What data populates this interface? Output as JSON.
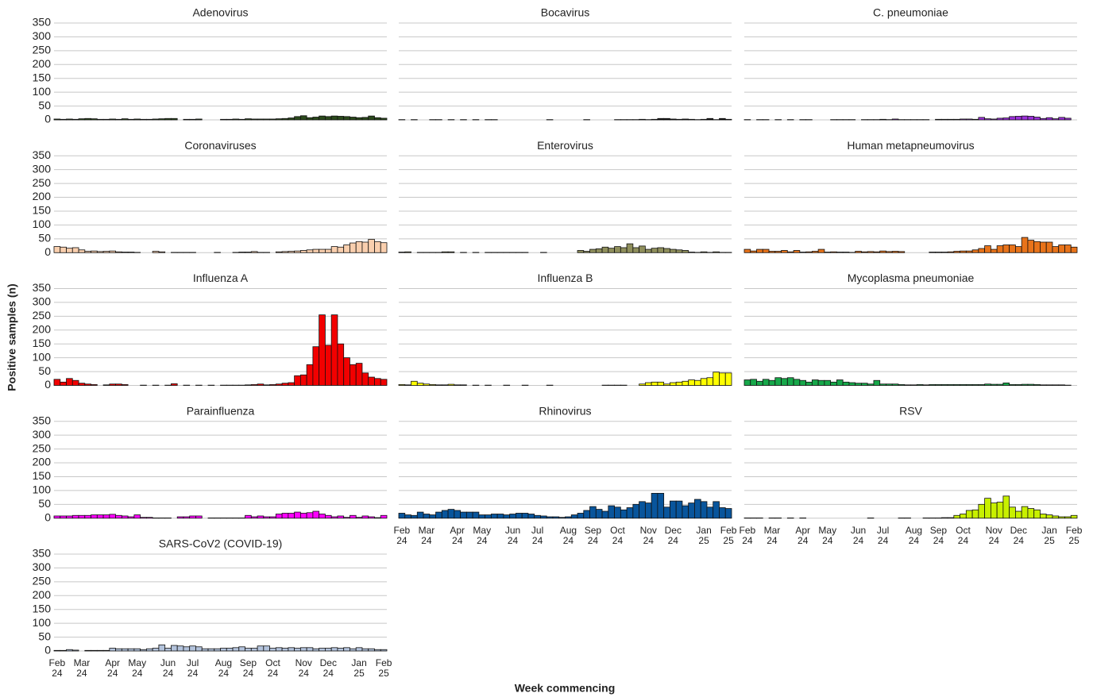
{
  "chart_data": {
    "type": "bar",
    "y_label": "Positive samples (n)",
    "x_label": "Week commencing",
    "categories": [
      "Feb 24",
      null,
      null,
      null,
      "Mar 24",
      null,
      null,
      null,
      null,
      "Apr 24",
      null,
      null,
      null,
      "May 24",
      null,
      null,
      null,
      null,
      "Jun 24",
      null,
      null,
      null,
      "Jul 24",
      null,
      null,
      null,
      null,
      "Aug 24",
      null,
      null,
      null,
      "Sep 24",
      null,
      null,
      null,
      "Oct 24",
      null,
      null,
      null,
      null,
      "Nov 24",
      null,
      null,
      null,
      "Dec 24",
      null,
      null,
      null,
      null,
      "Jan 25",
      null,
      null,
      null,
      "Feb 25"
    ],
    "ylim": [
      0,
      350
    ],
    "yticks": [
      0,
      50,
      100,
      150,
      200,
      250,
      300,
      350
    ],
    "grid": true,
    "panels": [
      {
        "title": "Adenovirus",
        "color": "#2b4a1c",
        "values": [
          3,
          2,
          3,
          2,
          4,
          5,
          4,
          2,
          2,
          3,
          2,
          4,
          2,
          3,
          2,
          2,
          3,
          4,
          5,
          5,
          null,
          2,
          2,
          3,
          null,
          null,
          null,
          2,
          2,
          3,
          2,
          4,
          3,
          3,
          3,
          3,
          4,
          5,
          7,
          12,
          15,
          8,
          10,
          14,
          12,
          14,
          13,
          12,
          10,
          8,
          9,
          14,
          8,
          6
        ]
      },
      {
        "title": "Bocavirus",
        "color": "#111111",
        "values": [
          1,
          null,
          1,
          null,
          null,
          1,
          1,
          null,
          1,
          null,
          1,
          null,
          1,
          null,
          1,
          1,
          null,
          null,
          null,
          null,
          null,
          null,
          null,
          null,
          1,
          null,
          null,
          null,
          null,
          null,
          1,
          null,
          null,
          null,
          null,
          1,
          1,
          1,
          1,
          2,
          1,
          2,
          5,
          5,
          3,
          2,
          3,
          2,
          1,
          2,
          5,
          1,
          5,
          2
        ]
      },
      {
        "title": "C. pneumoniae",
        "color": "#9b30d9",
        "values": [
          1,
          null,
          1,
          1,
          null,
          1,
          null,
          1,
          null,
          1,
          1,
          null,
          null,
          null,
          1,
          1,
          1,
          1,
          null,
          1,
          1,
          1,
          2,
          1,
          3,
          1,
          1,
          1,
          1,
          1,
          null,
          2,
          2,
          2,
          2,
          3,
          3,
          2,
          9,
          4,
          3,
          6,
          7,
          12,
          13,
          14,
          13,
          10,
          5,
          8,
          4,
          9,
          6,
          null
        ]
      },
      {
        "title": "Coronaviruses",
        "color": "#f9cfae",
        "values": [
          22,
          20,
          16,
          18,
          10,
          5,
          6,
          4,
          5,
          6,
          3,
          2,
          2,
          1,
          null,
          null,
          5,
          3,
          null,
          1,
          1,
          1,
          1,
          null,
          null,
          null,
          1,
          null,
          null,
          1,
          2,
          2,
          4,
          1,
          1,
          null,
          3,
          4,
          5,
          6,
          8,
          10,
          12,
          12,
          12,
          22,
          20,
          28,
          35,
          40,
          38,
          48,
          40,
          36
        ]
      },
      {
        "title": "Enterovirus",
        "color": "#8f8f5c",
        "values": [
          2,
          3,
          null,
          1,
          1,
          1,
          1,
          3,
          3,
          null,
          1,
          null,
          1,
          null,
          1,
          1,
          1,
          1,
          1,
          1,
          1,
          null,
          null,
          1,
          null,
          null,
          null,
          null,
          null,
          8,
          5,
          12,
          14,
          20,
          16,
          22,
          18,
          32,
          18,
          24,
          12,
          16,
          18,
          15,
          12,
          10,
          8,
          2,
          1,
          3,
          1,
          3,
          1,
          1
        ]
      },
      {
        "title": "Human metapneumovirus",
        "color": "#e8731a",
        "values": [
          12,
          6,
          12,
          12,
          5,
          5,
          8,
          3,
          8,
          2,
          3,
          5,
          12,
          2,
          3,
          2,
          2,
          1,
          5,
          3,
          4,
          3,
          6,
          4,
          5,
          4,
          null,
          null,
          null,
          null,
          2,
          2,
          2,
          3,
          5,
          6,
          6,
          10,
          15,
          25,
          12,
          25,
          28,
          28,
          22,
          55,
          45,
          40,
          38,
          38,
          22,
          28,
          28,
          20
        ]
      },
      {
        "title": "Influenza A",
        "color": "#f20000",
        "values": [
          22,
          12,
          25,
          18,
          8,
          5,
          3,
          null,
          2,
          5,
          5,
          3,
          null,
          null,
          1,
          null,
          1,
          null,
          1,
          6,
          null,
          1,
          null,
          1,
          null,
          1,
          null,
          1,
          1,
          1,
          1,
          2,
          3,
          5,
          2,
          3,
          5,
          8,
          10,
          35,
          38,
          75,
          140,
          255,
          145,
          255,
          150,
          100,
          75,
          80,
          45,
          30,
          25,
          22
        ]
      },
      {
        "title": "Influenza B",
        "color": "#ffff00",
        "values": [
          3,
          2,
          15,
          8,
          5,
          3,
          2,
          2,
          4,
          2,
          2,
          null,
          1,
          null,
          1,
          null,
          null,
          1,
          null,
          null,
          1,
          null,
          null,
          null,
          1,
          null,
          null,
          null,
          null,
          null,
          null,
          null,
          null,
          1,
          1,
          1,
          1,
          null,
          null,
          5,
          10,
          12,
          12,
          5,
          10,
          12,
          15,
          20,
          18,
          25,
          28,
          48,
          45,
          45
        ]
      },
      {
        "title": "Mycoplasma pneumoniae",
        "color": "#17a84a",
        "values": [
          20,
          22,
          15,
          22,
          18,
          28,
          25,
          28,
          22,
          18,
          12,
          20,
          18,
          18,
          12,
          20,
          12,
          10,
          8,
          8,
          5,
          18,
          5,
          5,
          5,
          3,
          2,
          2,
          3,
          2,
          3,
          3,
          3,
          3,
          3,
          3,
          3,
          3,
          3,
          5,
          4,
          4,
          9,
          3,
          3,
          4,
          4,
          3,
          2,
          2,
          2,
          2,
          1,
          null
        ]
      },
      {
        "title": "Parainfluenza",
        "color": "#ff00ff",
        "values": [
          8,
          8,
          8,
          10,
          10,
          10,
          12,
          12,
          12,
          14,
          10,
          8,
          5,
          12,
          3,
          3,
          1,
          1,
          1,
          null,
          5,
          5,
          8,
          8,
          null,
          1,
          1,
          1,
          1,
          1,
          1,
          10,
          5,
          8,
          5,
          5,
          15,
          18,
          18,
          22,
          18,
          20,
          25,
          15,
          10,
          5,
          8,
          3,
          10,
          3,
          8,
          5,
          2,
          10
        ]
      },
      {
        "title": "Rhinovirus",
        "color": "#08559c",
        "values": [
          18,
          12,
          10,
          22,
          15,
          12,
          22,
          28,
          32,
          28,
          22,
          22,
          22,
          12,
          12,
          15,
          15,
          12,
          15,
          18,
          18,
          15,
          10,
          8,
          5,
          5,
          3,
          5,
          12,
          18,
          28,
          42,
          32,
          25,
          45,
          40,
          30,
          38,
          50,
          60,
          55,
          90,
          90,
          40,
          62,
          62,
          45,
          55,
          68,
          60,
          40,
          60,
          38,
          35
        ]
      },
      {
        "title": "RSV",
        "color": "#c8f000",
        "values": [
          1,
          1,
          1,
          null,
          1,
          1,
          null,
          1,
          null,
          1,
          null,
          null,
          null,
          null,
          null,
          null,
          null,
          null,
          null,
          null,
          1,
          null,
          null,
          null,
          null,
          1,
          1,
          null,
          null,
          1,
          1,
          1,
          2,
          2,
          10,
          15,
          28,
          30,
          50,
          72,
          55,
          58,
          80,
          40,
          25,
          42,
          35,
          30,
          15,
          12,
          8,
          5,
          5,
          10
        ]
      },
      {
        "title": "SARS-CoV2 (COVID-19)",
        "color": "#b3c3dc",
        "values": [
          2,
          2,
          5,
          3,
          null,
          2,
          2,
          2,
          2,
          10,
          8,
          8,
          8,
          8,
          5,
          8,
          10,
          22,
          10,
          20,
          18,
          15,
          18,
          15,
          8,
          8,
          8,
          10,
          10,
          12,
          15,
          10,
          10,
          18,
          18,
          10,
          12,
          10,
          12,
          10,
          12,
          12,
          8,
          10,
          10,
          12,
          10,
          12,
          8,
          12,
          8,
          8,
          5,
          5
        ]
      }
    ]
  }
}
